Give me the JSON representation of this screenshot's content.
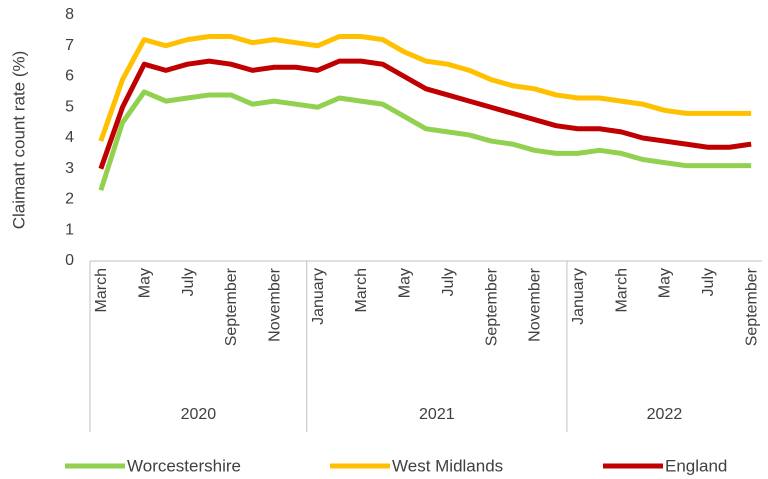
{
  "chart_data": {
    "type": "line",
    "y_label": "Claimant count rate (%)",
    "categories": [
      "March",
      null,
      "May",
      null,
      "July",
      null,
      "September",
      null,
      "November",
      null,
      "January",
      null,
      "March",
      null,
      "May",
      null,
      "July",
      null,
      "September",
      null,
      "November",
      null,
      "January",
      null,
      "March",
      null,
      "May",
      null,
      "July",
      null,
      "September"
    ],
    "x_groups": [
      {
        "label": "2020",
        "span": 10
      },
      {
        "label": "2021",
        "span": 12
      },
      {
        "label": "2022",
        "span": 9
      }
    ],
    "series": [
      {
        "name": "Worcestershire",
        "color": "#92d050",
        "values": [
          2.3,
          4.5,
          5.5,
          5.2,
          5.3,
          5.4,
          5.4,
          5.1,
          5.2,
          5.1,
          5.0,
          5.3,
          5.2,
          5.1,
          4.7,
          4.3,
          4.2,
          4.1,
          3.9,
          3.8,
          3.6,
          3.5,
          3.5,
          3.6,
          3.5,
          3.3,
          3.2,
          3.1,
          3.1,
          3.1,
          3.1
        ]
      },
      {
        "name": "West Midlands",
        "color": "#ffc000",
        "values": [
          3.9,
          5.9,
          7.2,
          7.0,
          7.2,
          7.3,
          7.3,
          7.1,
          7.2,
          7.1,
          7.0,
          7.3,
          7.3,
          7.2,
          6.8,
          6.5,
          6.4,
          6.2,
          5.9,
          5.7,
          5.6,
          5.4,
          5.3,
          5.3,
          5.2,
          5.1,
          4.9,
          4.8,
          4.8,
          4.8,
          4.8
        ]
      },
      {
        "name": "England",
        "color": "#c00000",
        "values": [
          3.0,
          5.0,
          6.4,
          6.2,
          6.4,
          6.5,
          6.4,
          6.2,
          6.3,
          6.3,
          6.2,
          6.5,
          6.5,
          6.4,
          6.0,
          5.6,
          5.4,
          5.2,
          5.0,
          4.8,
          4.6,
          4.4,
          4.3,
          4.3,
          4.2,
          4.0,
          3.9,
          3.8,
          3.7,
          3.7,
          3.8
        ]
      }
    ],
    "ylim": [
      0,
      8
    ],
    "yticks": [
      0,
      1,
      2,
      3,
      4,
      5,
      6,
      7,
      8
    ],
    "grid": false,
    "legend": "bottom"
  }
}
